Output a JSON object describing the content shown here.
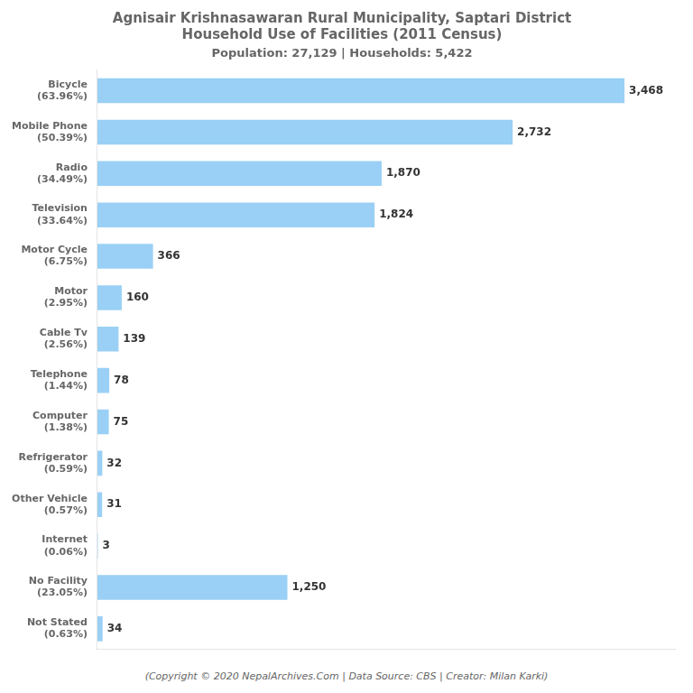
{
  "chart_data": {
    "type": "bar",
    "orientation": "horizontal",
    "title": "Agnisair Krishnasawaran Rural Municipality, Saptari District\nHousehold Use of Facilities (2011 Census)",
    "subtitle": "Population: 27,129 | Households: 5,422",
    "annotations": [
      "(Copyright © 2020 NepalArchives.Com | Data Source: CBS | Creator: Milan Karki)"
    ],
    "categories": [
      "Bicycle\n(63.96%)",
      "Mobile Phone\n(50.39%)",
      "Radio\n(34.49%)",
      "Television\n(33.64%)",
      "Motor Cycle\n(6.75%)",
      "Motor\n(2.95%)",
      "Cable Tv\n(2.56%)",
      "Telephone\n(1.44%)",
      "Computer\n(1.38%)",
      "Refrigerator\n(0.59%)",
      "Other Vehicle\n(0.57%)",
      "Internet\n(0.06%)",
      "No Facility\n(23.05%)",
      "Not Stated\n(0.63%)"
    ],
    "values": [
      3468,
      2732,
      1870,
      1824,
      366,
      160,
      139,
      78,
      75,
      32,
      31,
      3,
      1250,
      34
    ],
    "value_labels": [
      "3,468",
      "2,732",
      "1,870",
      "1,824",
      "366",
      "160",
      "139",
      "78",
      "75",
      "32",
      "31",
      "3",
      "1,250",
      "34"
    ],
    "data_labels": true,
    "xlim": [
      0,
      3800
    ],
    "tick_labels": "y",
    "grid": false
  }
}
